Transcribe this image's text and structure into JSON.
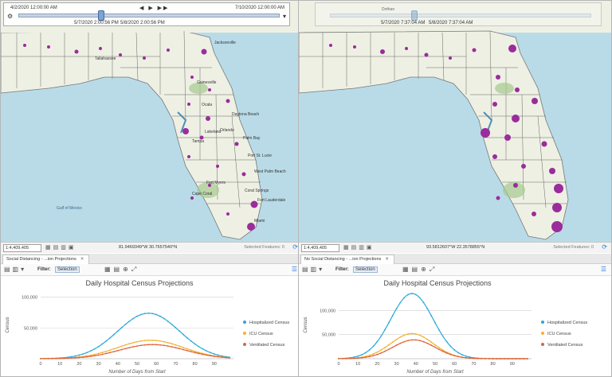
{
  "left": {
    "time_slider": {
      "start": "4/2/2020 12:00:00 AM",
      "end": "7/10/2020 12:00:00 AM",
      "current_start": "5/7/2020 2:00:56 PM",
      "current_end": "5/8/2020 2:00:56 PM",
      "controls": "◀ ▶ ▶▶"
    },
    "scale": "1:4,409,405",
    "coordinates": "81.9469349°W 30.7657540°N",
    "selected_features": "Selected Features: 0",
    "tab_label": "Social Distancing - ...ion Projections",
    "filter_label": "Filter:",
    "selection_label": "Selection",
    "places": [
      "Jacksonville",
      "Tallahassee",
      "Gainesville",
      "Ocala",
      "Orlando",
      "Daytona Beach",
      "Tampa",
      "Lakeland",
      "Palm Bay",
      "Port St. Lucie",
      "Fort Myers",
      "West Palm Beach",
      "Coral Springs",
      "Fort Lauderdale",
      "Miami",
      "Cape Coral",
      "Gulf of Mexico"
    ],
    "chart_data": {
      "type": "line",
      "title": "Daily Hospital Census Projections",
      "xlabel": "Number of Days from Start",
      "ylabel": "Census",
      "xlim": [
        0,
        100
      ],
      "ylim": [
        0,
        110000
      ],
      "xticks": [
        "0",
        "10",
        "20",
        "30",
        "40",
        "50",
        "60",
        "70",
        "80",
        "90"
      ],
      "yticks": [
        "50,000",
        "100,000"
      ],
      "legend_position": "right",
      "series": [
        {
          "name": "Hospitalized Census",
          "color": "#2aa7d8",
          "peak_day": 56,
          "peak_value": 74000,
          "spread": 16
        },
        {
          "name": "ICU Census",
          "color": "#f2b233",
          "peak_day": 57,
          "peak_value": 30000,
          "spread": 17
        },
        {
          "name": "Ventilated Census",
          "color": "#e0623a",
          "peak_day": 58,
          "peak_value": 23000,
          "spread": 17
        }
      ]
    }
  },
  "right": {
    "time_slider": {
      "current_start": "5/7/2020 7:37:04 AM",
      "current_end": "5/8/2020 7:37:04 AM",
      "place": "Dothan"
    },
    "scale": "1:4,409,405",
    "coordinates": "93.5812607°W 22.3578855°N",
    "selected_features": "Selected Features: 0",
    "tab_label": "No Social Distancing - ...ion Projections",
    "filter_label": "Filter:",
    "selection_label": "Selection",
    "chart_data": {
      "type": "line",
      "title": "Daily Hospital Census Projections",
      "xlabel": "Number of Days from Start",
      "ylabel": "Census",
      "xlim": [
        0,
        100
      ],
      "ylim": [
        0,
        140000
      ],
      "xticks": [
        "0",
        "10",
        "20",
        "30",
        "40",
        "50",
        "60",
        "70",
        "80",
        "90"
      ],
      "yticks": [
        "50,000",
        "100,000"
      ],
      "legend_position": "right",
      "series": [
        {
          "name": "Hospitalized Census",
          "color": "#2aa7d8",
          "peak_day": 38,
          "peak_value": 135000,
          "spread": 11
        },
        {
          "name": "ICU Census",
          "color": "#f2b233",
          "peak_day": 38,
          "peak_value": 52000,
          "spread": 11
        },
        {
          "name": "Ventilated Census",
          "color": "#e0623a",
          "peak_day": 39,
          "peak_value": 39000,
          "spread": 11
        }
      ]
    }
  },
  "icons": {
    "refresh": "refresh-icon",
    "close": "close-icon",
    "gear": "gear-icon",
    "hamburger": "menu-icon"
  },
  "map_colors": {
    "water": "#b9dbe8",
    "land": "#eef0e4",
    "county_border": "#595959",
    "point": "#9b2c9b"
  }
}
